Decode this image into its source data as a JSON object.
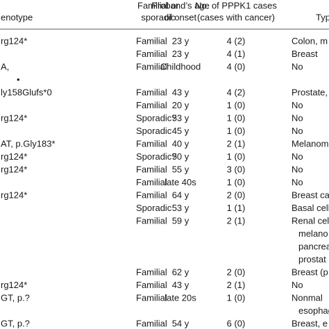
{
  "table": {
    "header": [
      [
        "enotype"
      ],
      [
        "Proband’s age",
        "of onset"
      ],
      [
        "Familial or",
        "sporadic"
      ],
      [
        "No. of PPPK1 cases",
        "(cases with cancer)"
      ],
      [
        "Typ"
      ]
    ],
    "rows": [
      {
        "genotype": [
          "rg124*"
        ],
        "age": "23 y",
        "familial": "Familial",
        "cases": "4 (2)",
        "type": [
          "Colon, m"
        ]
      },
      {
        "age": "23 y",
        "familial": "Familial",
        "cases": "4 (1)",
        "type": [
          "Breast"
        ]
      },
      {
        "genotype": [
          "A,",
          "•"
        ],
        "age": "Childhood",
        "familial": "Familial",
        "cases": "4 (0)",
        "type": [
          "No"
        ]
      },
      {
        "genotype": [
          "ly158Glufs*0"
        ],
        "age": "43 y",
        "familial": "Familial",
        "cases": "4 (2)",
        "type": [
          "Prostate,"
        ]
      },
      {
        "age": "20 y",
        "familial": "Familial",
        "cases": "1 (0)",
        "type": [
          "No"
        ]
      },
      {
        "genotype": [
          "rg124*"
        ],
        "age": "53 y",
        "familial": "Sporadic?",
        "cases": "1 (0)",
        "type": [
          "No"
        ]
      },
      {
        "age": "45 y",
        "familial": "Sporadic",
        "cases": "1 (0)",
        "type": [
          "No"
        ]
      },
      {
        "genotype": [
          "AT, p.Gly183*"
        ],
        "age": "40 y",
        "familial": "Familial",
        "cases": "2 (1)",
        "type": [
          "Melanom"
        ]
      },
      {
        "genotype": [
          "rg124*"
        ],
        "age": "50 y",
        "familial": "Sporadic?",
        "cases": "1 (0)",
        "type": [
          "No"
        ]
      },
      {
        "genotype": [
          "rg124*"
        ],
        "age": "55 y",
        "familial": "Familial",
        "cases": "3 (0)",
        "type": [
          "No"
        ]
      },
      {
        "age": "late 40s",
        "familial": "Familial",
        "cases": "1 (0)",
        "type": [
          "No"
        ]
      },
      {
        "genotype": [
          "rg124*"
        ],
        "age": "64 y",
        "familial": "Familial",
        "cases": "2 (0)",
        "type": [
          "Breast ca"
        ]
      },
      {
        "age": "53 y",
        "familial": "Sporadic",
        "cases": "1 (1)",
        "type": [
          "Basal cell"
        ]
      },
      {
        "age": "59 y",
        "familial": "Familial",
        "cases": "2 (1)",
        "type": [
          "Renal cel",
          "melano",
          "pancrea",
          "prostat"
        ]
      },
      {
        "age": "62 y",
        "familial": "Familial",
        "cases": "2 (0)",
        "type": [
          "Breast (p"
        ]
      },
      {
        "genotype": [
          "rg124*"
        ],
        "age": "43 y",
        "familial": "Familial",
        "cases": "2 (1)",
        "type": [
          "No"
        ]
      },
      {
        "genotype": [
          "GT, p.?"
        ],
        "age": "late 20s",
        "familial": "Familial",
        "cases": "1 (0)",
        "type": [
          "Nonmal",
          "esophag"
        ]
      },
      {
        "genotype": [
          "GT, p.?"
        ],
        "age": "54 y",
        "familial": "Familial",
        "cases": "6 (0)",
        "type": [
          "Breast, e"
        ]
      }
    ]
  }
}
